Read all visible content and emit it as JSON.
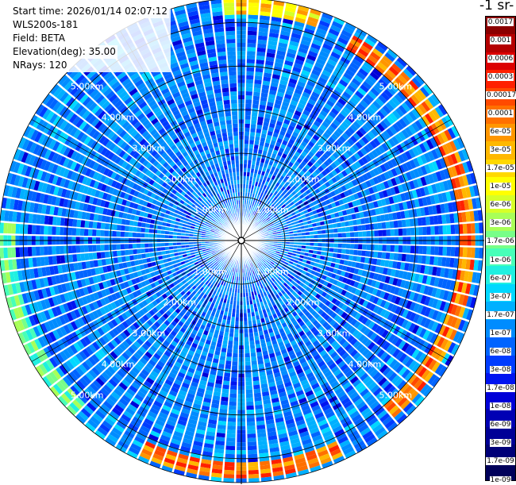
{
  "info": {
    "start_time": "Start time: 2026/01/14 02:07:12",
    "instrument": "WLS200s-181",
    "field": "Field: BETA",
    "elevation": "Elevation(deg): 35.00",
    "nrays": "NRays: 120"
  },
  "colorbar": {
    "unit_label": "-1 sr-",
    "labels": [
      "0.0017",
      "0.001",
      "0.0006",
      "0.0003",
      "0.00017",
      "0.0001",
      "6e-05",
      "3e-05",
      "1.7e-05",
      "1e-05",
      "6e-06",
      "3e-06",
      "1.7e-06",
      "1e-06",
      "6e-07",
      "3e-07",
      "1.7e-07",
      "1e-07",
      "6e-08",
      "3e-08",
      "1.7e-08",
      "1e-08",
      "6e-09",
      "3e-09",
      "1.7e-09",
      "1e-09"
    ],
    "colors": [
      "#8b0000",
      "#b40000",
      "#dc0000",
      "#ff2000",
      "#ff4a00",
      "#ff7000",
      "#ff9600",
      "#ffb800",
      "#ffd800",
      "#ffff00",
      "#d6ff28",
      "#a8ff58",
      "#78ff88",
      "#48ffb8",
      "#20f0e0",
      "#00d8ff",
      "#00b0ff",
      "#008cff",
      "#0064ff",
      "#003cff",
      "#0014f0",
      "#0000d8",
      "#0000b4",
      "#000096",
      "#000078",
      "#00005a"
    ]
  },
  "chart_data": {
    "type": "heatmap",
    "projection": "polar (PPI scan)",
    "range_rings_km": [
      1,
      2,
      3,
      4,
      5
    ],
    "ring_labels": [
      "1.00km",
      "2.00km",
      "3.00km",
      "4.00km",
      "5.00km"
    ],
    "num_rays": 120,
    "max_range_km": 5.55,
    "color_scale": "log",
    "value_range": [
      1e-09,
      0.0017
    ],
    "ring_features": [
      {
        "range_km": 5.2,
        "azimuth_deg": [
          30,
          140
        ],
        "description": "strong backscatter arc, red/orange"
      },
      {
        "range_km": 5.3,
        "azimuth_deg": [
          155,
          205
        ],
        "description": "strong backscatter arc, red/orange"
      },
      {
        "range_km": 5.35,
        "azimuth_deg": [
          355,
          20
        ],
        "description": "moderate arc, yellow/orange"
      },
      {
        "range_km": 5.4,
        "azimuth_deg": [
          225,
          275
        ],
        "description": "weak arc, cyan/green"
      }
    ],
    "background_level": "~1e-08 to 3e-08 (blue)"
  }
}
